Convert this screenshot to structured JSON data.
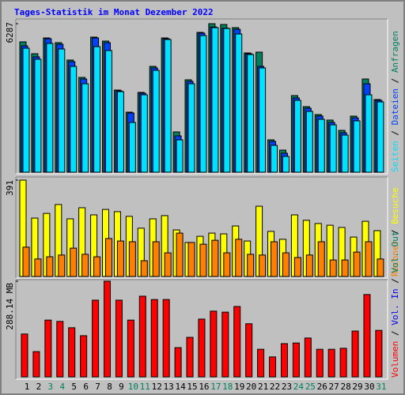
{
  "chart_data": [
    {
      "type": "bar",
      "title": "Tages-Statistik im Monat Dezember 2022",
      "ylim": [
        0,
        6287
      ],
      "yticks": [
        6287
      ],
      "legend_reverse": true,
      "legend_separator": " / ",
      "series": [
        {
          "name": "Anfragen",
          "color": "#00805c",
          "values": [
            5518,
            5016,
            5685,
            5484,
            4749,
            4013,
            5719,
            5551,
            3478,
            2542,
            3378,
            4481,
            5685,
            1706,
            3913,
            5919,
            6287,
            6254,
            6120,
            5050,
            5083,
            1371,
            936,
            3244,
            2776,
            2441,
            2207,
            1772,
            2374,
            3946,
            3077
          ]
        },
        {
          "name": "Dateien",
          "color": "#0040ff",
          "values": [
            5351,
            4882,
            5651,
            5417,
            4682,
            3946,
            5685,
            5484,
            3444,
            2508,
            3344,
            4414,
            5651,
            1538,
            3846,
            5885,
            6150,
            6100,
            6050,
            5016,
            4481,
            1304,
            803,
            3143,
            2709,
            2380,
            2107,
            1672,
            2300,
            3745,
            3043
          ]
        },
        {
          "name": "Seiten",
          "color": "#00e0ff",
          "values": [
            5250,
            4782,
            5451,
            5217,
            4481,
            3745,
            5317,
            5150,
            3411,
            2107,
            3277,
            4314,
            5618,
            1371,
            3745,
            5785,
            6120,
            6086,
            5852,
            4983,
            4414,
            1137,
            669,
            3043,
            2575,
            2240,
            2006,
            1572,
            2174,
            3277,
            2976
          ]
        }
      ]
    },
    {
      "type": "bar",
      "ylim": [
        0,
        391
      ],
      "yticks": [
        391
      ],
      "legend_reverse": true,
      "legend_separator": " / ",
      "series": [
        {
          "name": "Besuche",
          "color": "#ffff00",
          "values": [
            391,
            237,
            256,
            292,
            234,
            279,
            250,
            272,
            263,
            244,
            196,
            234,
            247,
            189,
            138,
            163,
            176,
            173,
            205,
            144,
            285,
            183,
            151,
            250,
            228,
            215,
            208,
            199,
            160,
            224,
            186
          ]
        },
        {
          "name": "Rechner",
          "color": "#ff8000",
          "values": [
            119,
            71,
            80,
            87,
            115,
            90,
            80,
            154,
            144,
            141,
            64,
            141,
            96,
            176,
            138,
            131,
            147,
            96,
            151,
            90,
            87,
            141,
            96,
            77,
            87,
            141,
            67,
            67,
            99,
            141,
            71
          ]
        }
      ]
    },
    {
      "type": "bar",
      "ylim": [
        0,
        288.14
      ],
      "yticks": [
        {
          "value": 288.14,
          "label": "288.14 MB"
        }
      ],
      "legend_reverse": false,
      "legend_separator": " / ",
      "series": [
        {
          "name": "Volumen",
          "color": "#ff0000",
          "values": [
            129,
            76,
            171,
            167,
            148,
            124,
            231,
            288.14,
            231,
            171,
            243,
            233,
            233,
            88,
            119,
            174,
            198,
            195,
            212,
            160,
            83,
            60,
            100,
            102,
            117,
            83,
            83,
            86,
            138,
            248,
            140
          ]
        }
      ],
      "extra_legend": [
        {
          "name": "Vol. In",
          "color": "#0000ff"
        },
        {
          "name": "Vol. Out",
          "color": "#00805c"
        }
      ],
      "categories": [
        "1",
        "2",
        "3",
        "4",
        "5",
        "6",
        "7",
        "8",
        "9",
        "10",
        "11",
        "12",
        "13",
        "14",
        "15",
        "16",
        "17",
        "18",
        "19",
        "20",
        "21",
        "22",
        "23",
        "24",
        "25",
        "26",
        "27",
        "28",
        "29",
        "30",
        "31"
      ],
      "category_label_colors": [
        "#000000",
        "#000000",
        "#00805c",
        "#00805c",
        "#000000",
        "#000000",
        "#000000",
        "#000000",
        "#000000",
        "#00805c",
        "#00805c",
        "#000000",
        "#000000",
        "#000000",
        "#000000",
        "#000000",
        "#00805c",
        "#00805c",
        "#000000",
        "#000000",
        "#000000",
        "#000000",
        "#000000",
        "#00805c",
        "#00805c",
        "#000000",
        "#000000",
        "#000000",
        "#000000",
        "#000000",
        "#00805c"
      ]
    }
  ]
}
